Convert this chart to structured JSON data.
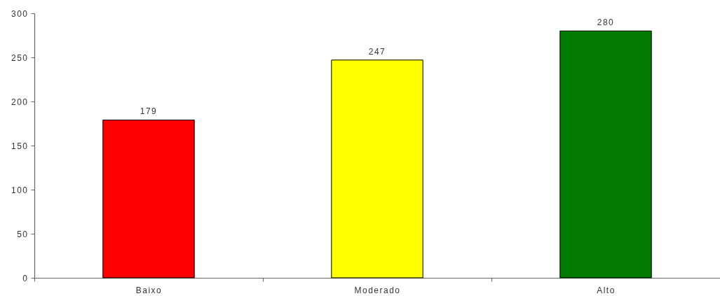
{
  "chart_data": {
    "type": "bar",
    "categories": [
      "Baixo",
      "Moderado",
      "Alto"
    ],
    "values": [
      179,
      247,
      280
    ],
    "colors": [
      "#ff0000",
      "#ffff00",
      "#007a00"
    ],
    "ylim": [
      0,
      300
    ],
    "yticks": [
      0,
      50,
      100,
      150,
      200,
      250,
      300
    ],
    "data_labels": true
  }
}
